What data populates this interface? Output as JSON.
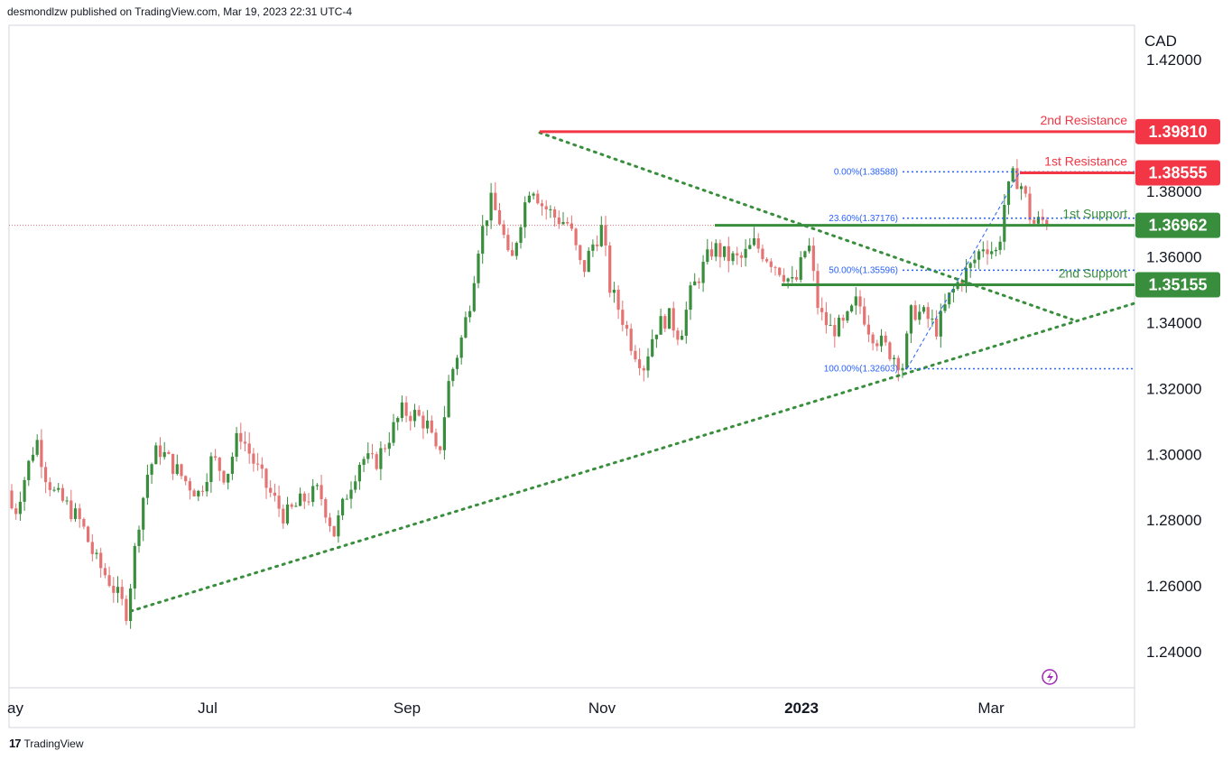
{
  "header": {
    "text": "desmondlzw published on TradingView.com, Mar 19, 2023 22:31 UTC-4"
  },
  "footer": {
    "logo": "17",
    "brand": "TradingView"
  },
  "chart_data": {
    "type": "candlestick",
    "currency_label": "CAD",
    "y_ticks": [
      "1.42000",
      "1.38000",
      "1.36000",
      "1.34000",
      "1.32000",
      "1.30000",
      "1.28000",
      "1.26000",
      "1.24000"
    ],
    "x_ticks": [
      {
        "label": "ay",
        "bold": false
      },
      {
        "label": "Jul",
        "bold": false
      },
      {
        "label": "Sep",
        "bold": false
      },
      {
        "label": "Nov",
        "bold": false
      },
      {
        "label": "2023",
        "bold": true
      },
      {
        "label": "Mar",
        "bold": false
      }
    ],
    "levels": [
      {
        "name": "2nd Resistance",
        "value": "1.39810",
        "color": "#f23645"
      },
      {
        "name": "1st Resistance",
        "value": "1.38555",
        "color": "#f23645"
      },
      {
        "name": "1st Support",
        "value": "1.36962",
        "color": "#388e3c"
      },
      {
        "name": "2nd Support",
        "value": "1.35155",
        "color": "#388e3c"
      }
    ],
    "fib_levels": [
      {
        "label": "0.00%(1.38588)",
        "value": 1.38588
      },
      {
        "label": "23.60%(1.37176)",
        "value": 1.37176
      },
      {
        "label": "50.00%(1.35596)",
        "value": 1.35596
      },
      {
        "label": "100.00%(1.32603)",
        "value": 1.32603
      }
    ],
    "colors": {
      "up": "#388e3c",
      "down": "#e57373",
      "resistance": "#f23645",
      "support": "#388e3c",
      "fib": "#2962ff"
    }
  }
}
